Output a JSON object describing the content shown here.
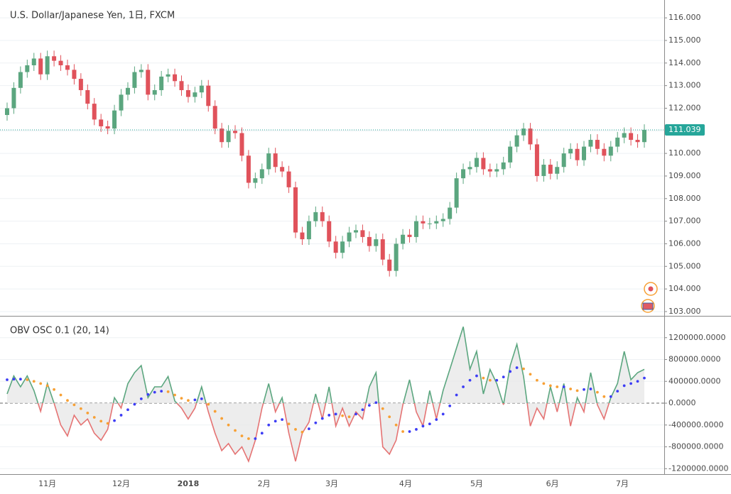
{
  "chart_data": [
    {
      "type": "candlestick",
      "title": "U.S. Dollar/Japanese Yen, 1日, FXCM",
      "categories": [
        null,
        null,
        null,
        null,
        null,
        null,
        null,
        null,
        null,
        null,
        null,
        null,
        null,
        null,
        null,
        null,
        null,
        null,
        null,
        null,
        null,
        null,
        null,
        null,
        null,
        null,
        null,
        null,
        null,
        null,
        null,
        null,
        null,
        null,
        null,
        null,
        null,
        null,
        null,
        null,
        null,
        null,
        null,
        null,
        null,
        null,
        null,
        null,
        null,
        null,
        null,
        null,
        null,
        null,
        null,
        null,
        null,
        null,
        null,
        null,
        null,
        null,
        null,
        null,
        null,
        null,
        null,
        null,
        null,
        null,
        null,
        null,
        null,
        null,
        null,
        null,
        null,
        null,
        null,
        null,
        null,
        null,
        null,
        null,
        null,
        null,
        null,
        null,
        null,
        null,
        null,
        null,
        null,
        null,
        null,
        null
      ],
      "open": [
        111.7,
        112.0,
        112.9,
        113.6,
        113.9,
        114.2,
        113.5,
        114.3,
        114.1,
        113.9,
        113.7,
        113.3,
        112.8,
        112.2,
        111.5,
        111.2,
        111.1,
        111.9,
        112.6,
        112.9,
        113.6,
        113.7,
        112.6,
        112.8,
        113.4,
        113.5,
        113.2,
        112.8,
        112.5,
        112.7,
        113.0,
        112.1,
        111.1,
        110.5,
        111.0,
        110.9,
        109.9,
        108.7,
        108.9,
        109.3,
        110.0,
        109.4,
        109.2,
        108.5,
        106.5,
        106.2,
        107.0,
        107.4,
        107.0,
        106.1,
        105.6,
        106.1,
        106.5,
        106.6,
        106.3,
        105.9,
        106.2,
        105.3,
        104.8,
        106.0,
        106.4,
        106.3,
        107.0,
        106.9,
        106.9,
        107.0,
        107.1,
        107.6,
        108.9,
        109.3,
        109.4,
        109.8,
        109.3,
        109.2,
        109.3,
        109.6,
        110.3,
        110.8,
        111.1,
        110.4,
        109.0,
        109.5,
        109.1,
        109.4,
        110.0,
        110.2,
        109.7,
        110.3,
        110.6,
        110.2,
        109.9,
        110.3,
        110.7,
        110.9,
        110.6,
        110.5
      ],
      "high": [
        112.25,
        113.15,
        113.85,
        114.15,
        114.45,
        114.45,
        114.55,
        114.55,
        114.35,
        114.15,
        113.95,
        113.55,
        113.05,
        112.45,
        111.75,
        111.45,
        112.15,
        112.85,
        113.15,
        113.85,
        113.95,
        113.95,
        113.05,
        113.65,
        113.75,
        113.75,
        113.45,
        113.05,
        112.95,
        113.25,
        113.25,
        112.35,
        111.35,
        111.25,
        111.25,
        111.15,
        110.15,
        109.15,
        109.55,
        110.25,
        110.25,
        109.65,
        109.45,
        108.75,
        106.75,
        107.25,
        107.65,
        107.65,
        107.25,
        106.35,
        106.35,
        106.75,
        106.85,
        106.85,
        106.55,
        106.45,
        106.45,
        105.55,
        106.25,
        106.65,
        106.65,
        107.25,
        107.25,
        107.15,
        107.25,
        107.35,
        107.85,
        109.15,
        109.55,
        109.65,
        110.05,
        110.05,
        109.55,
        109.55,
        109.85,
        110.55,
        111.05,
        111.35,
        111.35,
        110.65,
        109.75,
        109.75,
        109.65,
        110.25,
        110.45,
        110.45,
        110.55,
        110.85,
        110.85,
        110.45,
        110.55,
        110.95,
        111.15,
        111.15,
        110.85,
        111.29
      ],
      "low": [
        111.45,
        111.75,
        112.65,
        113.35,
        113.65,
        113.25,
        113.25,
        113.85,
        113.65,
        113.45,
        113.05,
        112.55,
        111.95,
        111.25,
        110.95,
        110.85,
        110.85,
        111.65,
        112.35,
        112.65,
        113.35,
        112.35,
        112.35,
        112.55,
        113.15,
        112.95,
        112.55,
        112.25,
        112.25,
        112.45,
        111.85,
        110.85,
        110.25,
        110.25,
        110.65,
        109.65,
        108.45,
        108.45,
        108.65,
        109.05,
        109.15,
        108.95,
        108.25,
        106.25,
        105.95,
        105.95,
        106.75,
        106.75,
        105.85,
        105.35,
        105.35,
        105.85,
        106.25,
        106.05,
        105.65,
        105.65,
        105.05,
        104.55,
        104.55,
        105.75,
        106.05,
        106.05,
        106.65,
        106.65,
        106.65,
        106.75,
        106.85,
        107.35,
        108.65,
        109.05,
        109.15,
        109.05,
        108.95,
        108.95,
        109.05,
        109.35,
        110.05,
        110.55,
        110.15,
        108.75,
        108.75,
        108.85,
        108.85,
        109.15,
        109.75,
        109.45,
        109.45,
        110.05,
        109.95,
        109.65,
        109.65,
        110.05,
        110.45,
        110.35,
        110.25,
        110.25
      ],
      "close": [
        112.0,
        112.9,
        113.6,
        113.9,
        114.2,
        113.5,
        114.3,
        114.1,
        113.9,
        113.7,
        113.3,
        112.8,
        112.2,
        111.5,
        111.2,
        111.1,
        111.9,
        112.6,
        112.9,
        113.6,
        113.7,
        112.6,
        112.8,
        113.4,
        113.5,
        113.2,
        112.8,
        112.5,
        112.7,
        113.0,
        112.1,
        111.1,
        110.5,
        111.0,
        110.9,
        109.9,
        108.7,
        108.9,
        109.3,
        110.0,
        109.4,
        109.2,
        108.5,
        106.5,
        106.2,
        107.0,
        107.4,
        107.0,
        106.1,
        105.6,
        106.1,
        106.5,
        106.6,
        106.3,
        105.9,
        106.2,
        105.3,
        104.8,
        106.0,
        106.4,
        106.3,
        107.0,
        106.9,
        106.9,
        107.0,
        107.1,
        107.6,
        108.9,
        109.3,
        109.4,
        109.8,
        109.3,
        109.2,
        109.3,
        109.6,
        110.3,
        110.8,
        111.1,
        110.4,
        109.0,
        109.5,
        109.1,
        109.4,
        110.0,
        110.2,
        109.7,
        110.3,
        110.6,
        110.2,
        109.9,
        110.3,
        110.7,
        110.9,
        110.6,
        110.5,
        111.039
      ],
      "up_color": "#5ba67f",
      "down_color": "#e0525b",
      "last_price": 111.039,
      "last_price_color": "#26a69a",
      "ylim": [
        102.81,
        116.79
      ],
      "yticks": [
        {
          "value": 103,
          "label": "103.000"
        },
        {
          "value": 104,
          "label": "104.000"
        },
        {
          "value": 105,
          "label": "105.000"
        },
        {
          "value": 106,
          "label": "106.000"
        },
        {
          "value": 107,
          "label": "107.000"
        },
        {
          "value": 108,
          "label": "108.000"
        },
        {
          "value": 109,
          "label": "109.000"
        },
        {
          "value": 110,
          "label": "110.000"
        },
        {
          "value": 111,
          "label": "111.000"
        },
        {
          "value": 112,
          "label": "112.000"
        },
        {
          "value": 113,
          "label": "113.000"
        },
        {
          "value": 114,
          "label": "114.000"
        },
        {
          "value": 115,
          "label": "115.000"
        },
        {
          "value": 116,
          "label": "116.000"
        }
      ],
      "grid": true
    },
    {
      "type": "oscillator",
      "title": "OBV OSC 0.1 (20, 14)",
      "values": [
        170000,
        500000,
        300000,
        500000,
        230000,
        -150000,
        360000,
        0,
        -400000,
        -600000,
        -220000,
        -400000,
        -290000,
        -550000,
        -680000,
        -480000,
        100000,
        -90000,
        360000,
        560000,
        690000,
        100000,
        300000,
        300000,
        490000,
        40000,
        -90000,
        -290000,
        -90000,
        300000,
        -160000,
        -550000,
        -870000,
        -740000,
        -935000,
        -800000,
        -1065000,
        -680000,
        -90000,
        360000,
        -160000,
        100000,
        -550000,
        -1065000,
        -550000,
        -350000,
        170000,
        -290000,
        300000,
        -420000,
        -90000,
        -420000,
        -160000,
        -290000,
        300000,
        560000,
        -800000,
        -935000,
        -680000,
        -30000,
        430000,
        -160000,
        -420000,
        230000,
        -290000,
        230000,
        620000,
        1010000,
        1400000,
        620000,
        950000,
        170000,
        620000,
        360000,
        -30000,
        690000,
        1080000,
        490000,
        -420000,
        -90000,
        -290000,
        300000,
        -160000,
        360000,
        -420000,
        100000,
        -160000,
        560000,
        -30000,
        -290000,
        100000,
        360000,
        950000,
        430000,
        560000,
        620000
      ],
      "signal": [
        430000,
        440000,
        440000,
        430000,
        400000,
        360000,
        320000,
        250000,
        150000,
        50000,
        -30000,
        -100000,
        -180000,
        -260000,
        -330000,
        -370000,
        -320000,
        -220000,
        -120000,
        -20000,
        80000,
        160000,
        200000,
        220000,
        210000,
        150000,
        90000,
        50000,
        60000,
        80000,
        -20000,
        -150000,
        -280000,
        -400000,
        -500000,
        -600000,
        -650000,
        -650000,
        -550000,
        -400000,
        -330000,
        -300000,
        -380000,
        -480000,
        -530000,
        -470000,
        -360000,
        -280000,
        -220000,
        -200000,
        -230000,
        -250000,
        -200000,
        -120000,
        -40000,
        10000,
        -100000,
        -250000,
        -400000,
        -520000,
        -520000,
        -480000,
        -420000,
        -380000,
        -300000,
        -200000,
        -50000,
        150000,
        300000,
        420000,
        500000,
        460000,
        420000,
        420000,
        480000,
        580000,
        650000,
        630000,
        530000,
        420000,
        360000,
        320000,
        300000,
        300000,
        260000,
        230000,
        250000,
        260000,
        200000,
        120000,
        120000,
        220000,
        320000,
        360000,
        400000,
        460000
      ],
      "positive_color": "#5ba67f",
      "negative_color": "#e57373",
      "fill_color": "#e8e8e8",
      "signal_up_color": "#3d3df5",
      "signal_down_color": "#f7a035",
      "ylim": [
        -1300000,
        1600000
      ],
      "yticks": [
        {
          "value": 1200000,
          "label": "1200000.0000"
        },
        {
          "value": 800000,
          "label": "800000.0000"
        },
        {
          "value": 400000,
          "label": "400000.0000"
        },
        {
          "value": 0,
          "label": "0.0000"
        },
        {
          "value": -400000,
          "label": "-400000.0000"
        },
        {
          "value": -800000,
          "label": "-800000.0000"
        },
        {
          "value": -1200000,
          "label": "-1200000.0000"
        }
      ],
      "xticks": [
        {
          "value": 6,
          "label": "11月"
        },
        {
          "value": 17,
          "label": "12月"
        },
        {
          "value": 27,
          "label": "2018"
        },
        {
          "value": 38.3,
          "label": "2月"
        },
        {
          "value": 48.4,
          "label": "3月"
        },
        {
          "value": 59.4,
          "label": "4月"
        },
        {
          "value": 70,
          "label": "5月"
        },
        {
          "value": 81.3,
          "label": "6月"
        },
        {
          "value": 91.7,
          "label": "7月"
        }
      ],
      "grid": true
    }
  ]
}
